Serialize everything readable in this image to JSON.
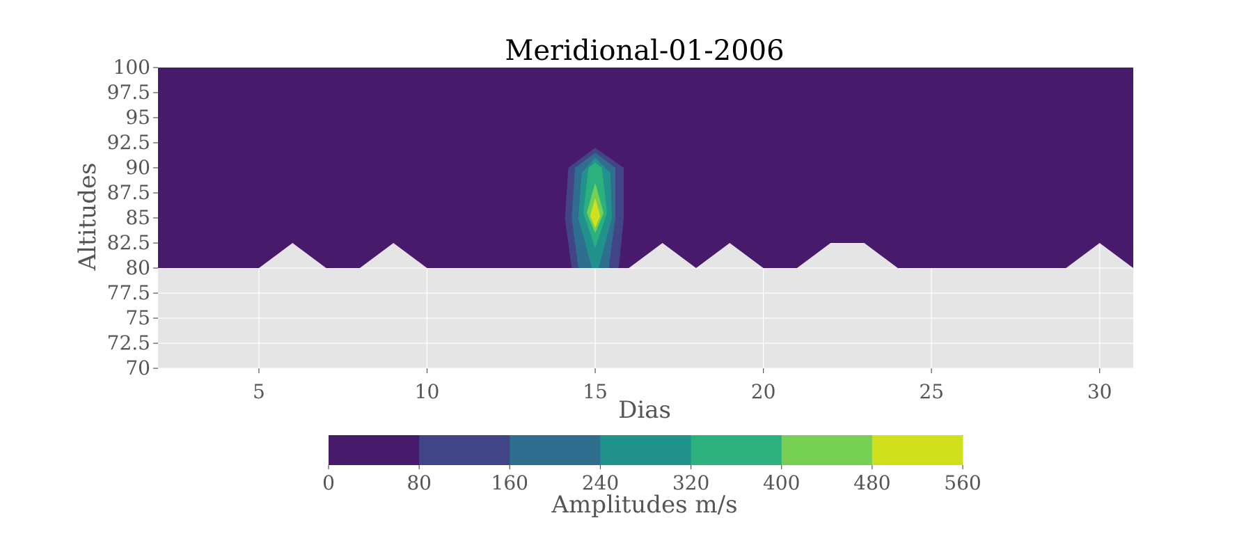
{
  "chart_data": {
    "type": "contour",
    "title": "Meridional-01-2006",
    "xlabel": "Dias",
    "ylabel": "Altitudes",
    "xlim": [
      2,
      31
    ],
    "ylim": [
      70,
      100
    ],
    "xticks": [
      5,
      10,
      15,
      20,
      25,
      30
    ],
    "yticks": [
      70,
      72.5,
      75,
      77.5,
      80,
      82.5,
      85,
      87.5,
      90,
      92.5,
      95,
      97.5,
      100
    ],
    "grid": true,
    "background_color": "#e5e5e5",
    "data_region_x": [
      2,
      31
    ],
    "data_region_y": [
      80,
      100
    ],
    "data_lower_boundary": [
      [
        2,
        80
      ],
      [
        5,
        80
      ],
      [
        6,
        82.5
      ],
      [
        7,
        80
      ],
      [
        8,
        80
      ],
      [
        9,
        82.5
      ],
      [
        10,
        80
      ],
      [
        16,
        80
      ],
      [
        17,
        82.5
      ],
      [
        18,
        80
      ],
      [
        19,
        82.5
      ],
      [
        20,
        80
      ],
      [
        21,
        80
      ],
      [
        22,
        82.5
      ],
      [
        23,
        82.5
      ],
      [
        24,
        80
      ],
      [
        29,
        80
      ],
      [
        30,
        82.5
      ],
      [
        31,
        80
      ]
    ],
    "peak": {
      "day": 15,
      "altitude": 85,
      "amplitude": 540
    },
    "contour_polygons": [
      {
        "level_index": 1,
        "points": [
          [
            14.2,
            90
          ],
          [
            15,
            92
          ],
          [
            15.85,
            90
          ],
          [
            15.85,
            85
          ],
          [
            15.7,
            80
          ],
          [
            14.3,
            80
          ],
          [
            14.1,
            85
          ]
        ]
      },
      {
        "level_index": 2,
        "points": [
          [
            14.4,
            90
          ],
          [
            15,
            91.5
          ],
          [
            15.6,
            90
          ],
          [
            15.6,
            85
          ],
          [
            15.4,
            80
          ],
          [
            14.5,
            80
          ],
          [
            14.3,
            85
          ]
        ]
      },
      {
        "level_index": 3,
        "points": [
          [
            14.6,
            89.5
          ],
          [
            15,
            91
          ],
          [
            15.45,
            89.5
          ],
          [
            15.5,
            85
          ],
          [
            15.1,
            80
          ],
          [
            14.9,
            80
          ],
          [
            14.5,
            85
          ]
        ]
      },
      {
        "level_index": 4,
        "points": [
          [
            14.8,
            90
          ],
          [
            15,
            90.5
          ],
          [
            15.2,
            90
          ],
          [
            15.35,
            85.5
          ],
          [
            15,
            82
          ],
          [
            14.65,
            85.5
          ]
        ]
      },
      {
        "level_index": 5,
        "points": [
          [
            15,
            88.5
          ],
          [
            15.25,
            85.5
          ],
          [
            15,
            83.5
          ],
          [
            14.75,
            85.5
          ]
        ]
      },
      {
        "level_index": 6,
        "points": [
          [
            15,
            87
          ],
          [
            15.15,
            85.2
          ],
          [
            15,
            84
          ],
          [
            14.85,
            85.2
          ]
        ]
      }
    ],
    "colorbar": {
      "label": "Amplitudes m/s",
      "ticks": [
        0,
        80,
        160,
        240,
        320,
        400,
        480,
        560
      ],
      "colors": [
        "#481a6c",
        "#414487",
        "#2f6e8e",
        "#21918c",
        "#2cb17e",
        "#76d054",
        "#d0e11c"
      ]
    }
  }
}
